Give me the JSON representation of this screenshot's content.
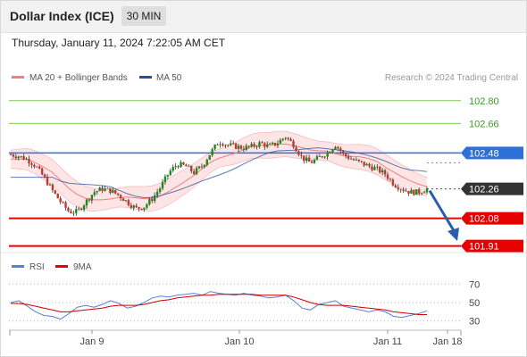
{
  "header": {
    "title": "Dollar Index (ICE)",
    "timeframe": "30 MIN",
    "datetime": "Thursday, January 11, 2024 7:22:05 AM CET"
  },
  "legend": {
    "bb_label": "MA 20 + Bollinger Bands",
    "ma50_label": "MA 50",
    "credit": "Research © 2024 Trading Central",
    "rsi_label": "RSI",
    "rsi_ma_label": "9MA"
  },
  "colors": {
    "bb": "#f08080",
    "ma50": "#2a4f9a",
    "green_line": "#7ec850",
    "blue_line": "#2e6fd8",
    "red_line": "#e60000",
    "dark_tag": "#333333",
    "arrow": "#2b5ea8",
    "bull": "#1a8a1a",
    "bear": "#c0392b",
    "rsi": "#5a7fd6",
    "rsi_ma": "#cc0000"
  },
  "chart_data": {
    "type": "candlestick",
    "title": "Dollar Index (ICE)",
    "timeframe": "30 MIN",
    "ylim": [
      101.87,
      102.87
    ],
    "x_ticks": [
      "Jan 9",
      "Jan 10",
      "Jan 11",
      "Jan 18"
    ],
    "levels": [
      {
        "value": 102.8,
        "label": "102.80",
        "style": "green-thin"
      },
      {
        "value": 102.66,
        "label": "102.66",
        "style": "green-thin"
      },
      {
        "value": 102.48,
        "label": "102.48",
        "style": "blue"
      },
      {
        "value": 102.26,
        "label": "102.26",
        "style": "current-price"
      },
      {
        "value": 102.08,
        "label": "102.08",
        "style": "red"
      },
      {
        "value": 101.91,
        "label": "101.91",
        "style": "red"
      }
    ],
    "last_price": 102.26,
    "projection": {
      "from": 102.26,
      "to": 101.93,
      "direction": "down"
    },
    "close_path": [
      102.47,
      102.46,
      102.44,
      102.4,
      102.33,
      102.25,
      102.18,
      102.12,
      102.12,
      102.18,
      102.24,
      102.26,
      102.25,
      102.22,
      102.18,
      102.14,
      102.15,
      102.2,
      102.27,
      102.36,
      102.41,
      102.4,
      102.36,
      102.4,
      102.48,
      102.55,
      102.53,
      102.52,
      102.51,
      102.52,
      102.54,
      102.52,
      102.54,
      102.58,
      102.53,
      102.45,
      102.42,
      102.45,
      102.48,
      102.53,
      102.47,
      102.44,
      102.42,
      102.4,
      102.38,
      102.35,
      102.29,
      102.26,
      102.24,
      102.24,
      102.26
    ],
    "rsi_ylim": [
      22,
      78
    ],
    "rsi_ticks": [
      70,
      50,
      30
    ],
    "rsi": [
      50,
      52,
      46,
      40,
      36,
      35,
      32,
      38,
      45,
      47,
      45,
      48,
      52,
      49,
      44,
      46,
      50,
      55,
      57,
      56,
      58,
      59,
      60,
      58,
      62,
      60,
      59,
      58,
      60,
      58,
      57,
      55,
      56,
      58,
      52,
      44,
      42,
      48,
      50,
      52,
      46,
      44,
      42,
      40,
      42,
      40,
      35,
      34,
      36,
      38,
      41
    ],
    "rsi_ma": [
      49,
      49,
      48,
      46,
      44,
      42,
      40,
      40,
      41,
      42,
      43,
      44,
      46,
      47,
      47,
      47,
      48,
      50,
      52,
      53,
      55,
      56,
      57,
      58,
      58,
      59,
      59,
      59,
      59,
      59,
      58,
      58,
      58,
      58,
      56,
      53,
      50,
      48,
      47,
      47,
      47,
      46,
      45,
      44,
      43,
      42,
      40,
      39,
      38,
      37,
      37
    ]
  }
}
